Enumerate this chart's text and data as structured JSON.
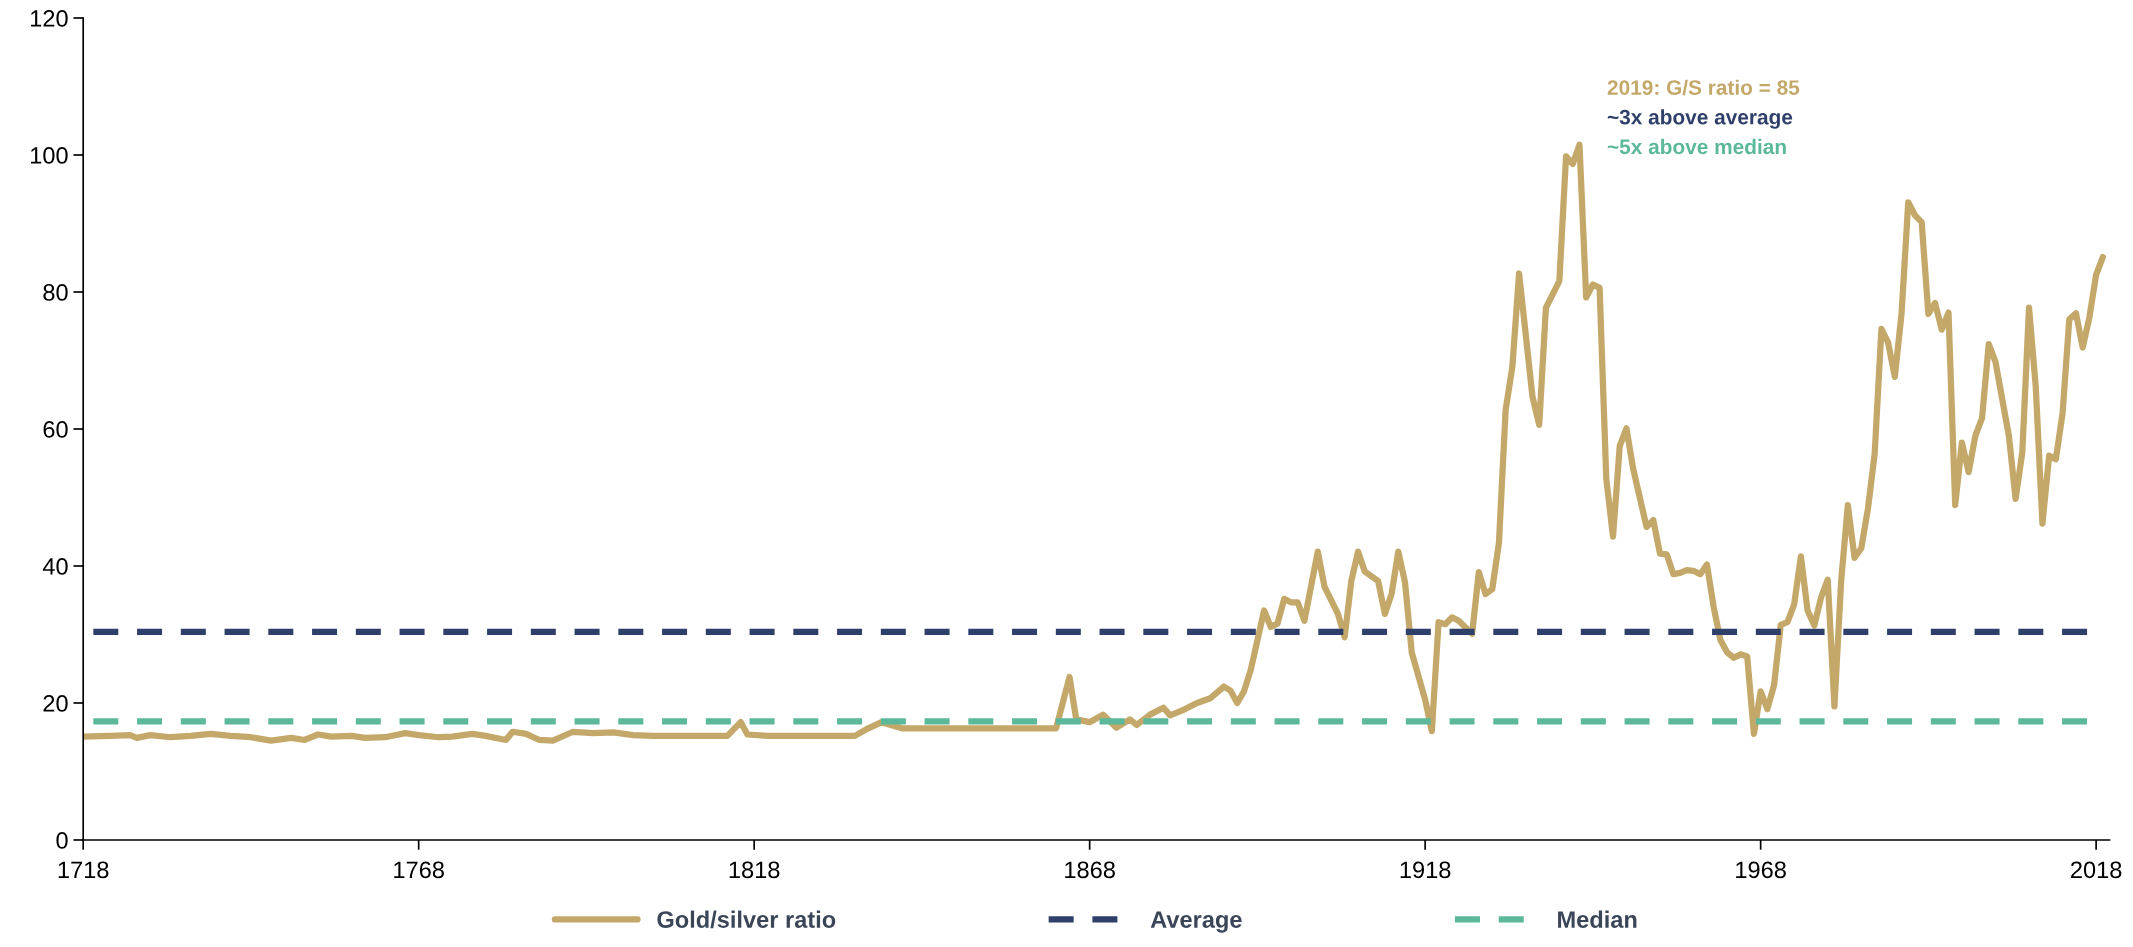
{
  "chart_data": {
    "type": "line",
    "x": [
      1718,
      1722,
      1725,
      1726,
      1728,
      1731,
      1734,
      1737,
      1740,
      1743,
      1746,
      1749,
      1751,
      1753,
      1755,
      1758,
      1760,
      1763,
      1766,
      1768,
      1771,
      1773,
      1776,
      1778,
      1781,
      1782,
      1784,
      1786,
      1788,
      1791,
      1794,
      1797,
      1800,
      1803,
      1814,
      1816,
      1817,
      1820,
      1833,
      1835,
      1837,
      1840,
      1863,
      1865,
      1866,
      1868,
      1870,
      1872,
      1874,
      1875,
      1877,
      1879,
      1880,
      1881,
      1882,
      1884,
      1886,
      1888,
      1889,
      1890,
      1891,
      1892,
      1894,
      1895,
      1896,
      1897,
      1898,
      1899,
      1900,
      1902,
      1903,
      1905,
      1906,
      1907,
      1908,
      1909,
      1911,
      1912,
      1913,
      1914,
      1915,
      1916,
      1918,
      1919,
      1920,
      1921,
      1922,
      1923,
      1925,
      1926,
      1927,
      1928,
      1929,
      1930,
      1931,
      1932,
      1934,
      1935,
      1936,
      1938,
      1939,
      1940,
      1941,
      1942,
      1943,
      1944,
      1945,
      1946,
      1947,
      1948,
      1949,
      1951,
      1952,
      1953,
      1954,
      1955,
      1956,
      1957,
      1958,
      1959,
      1960,
      1961,
      1962,
      1963,
      1964,
      1965,
      1966,
      1967,
      1968,
      1969,
      1970,
      1971,
      1972,
      1973,
      1974,
      1975,
      1976,
      1977,
      1978,
      1979,
      1980,
      1981,
      1982,
      1983,
      1984,
      1985,
      1986,
      1987,
      1988,
      1989,
      1990,
      1991,
      1992,
      1993,
      1994,
      1995,
      1996,
      1997,
      1998,
      1999,
      2000,
      2001,
      2002,
      2003,
      2005,
      2006,
      2007,
      2008,
      2009,
      2010,
      2011,
      2012,
      2013,
      2014,
      2015,
      2016,
      2017,
      2018,
      2019
    ],
    "series": [
      {
        "name": "Gold/silver ratio",
        "color": "#c4a86a",
        "values": [
          15.1,
          15.2,
          15.3,
          14.9,
          15.3,
          15.0,
          15.2,
          15.5,
          15.2,
          15.0,
          14.5,
          14.9,
          14.6,
          15.4,
          15.1,
          15.2,
          14.9,
          15.0,
          15.6,
          15.3,
          15.0,
          15.1,
          15.5,
          15.2,
          14.6,
          15.8,
          15.5,
          14.6,
          14.5,
          15.8,
          15.6,
          15.7,
          15.3,
          15.2,
          15.2,
          17.2,
          15.4,
          15.2,
          15.2,
          16.3,
          17.2,
          16.3,
          16.3,
          23.8,
          17.6,
          17.2,
          18.3,
          16.4,
          17.6,
          16.8,
          18.3,
          19.3,
          18.2,
          18.6,
          19.0,
          20.0,
          20.7,
          22.4,
          21.8,
          20.0,
          21.7,
          24.8,
          33.5,
          31.1,
          31.6,
          35.2,
          34.7,
          34.7,
          32.0,
          42.1,
          37.0,
          33.0,
          29.6,
          37.8,
          42.1,
          39.2,
          37.8,
          33.0,
          35.9,
          42.1,
          37.6,
          27.4,
          20.5,
          15.9,
          31.8,
          31.5,
          32.5,
          32.0,
          30.1,
          39.1,
          35.9,
          36.6,
          43.4,
          62.8,
          69.1,
          82.7,
          64.7,
          60.6,
          77.7,
          81.6,
          99.8,
          98.7,
          101.5,
          79.2,
          81.1,
          80.6,
          52.7,
          44.3,
          57.5,
          60.1,
          54.2,
          45.7,
          46.7,
          41.8,
          41.7,
          38.8,
          39.0,
          39.4,
          39.3,
          38.8,
          40.2,
          34.0,
          29.2,
          27.4,
          26.6,
          27.1,
          26.8,
          15.5,
          21.7,
          19.1,
          22.6,
          31.4,
          31.8,
          34.4,
          41.4,
          33.5,
          31.3,
          35.4,
          38.0,
          19.5,
          37.8,
          48.9,
          41.2,
          42.6,
          48.4,
          56.4,
          74.6,
          72.6,
          67.6,
          76.8,
          93.1,
          91.2,
          90.2,
          76.8,
          78.4,
          74.5,
          77.0,
          48.9,
          58.0,
          53.7,
          59.0,
          61.6,
          72.4,
          69.8,
          59.0,
          49.8,
          56.6,
          77.7,
          66.2,
          46.2,
          56.1,
          55.6,
          62.3,
          76.0,
          76.9,
          71.9,
          76.3,
          82.5,
          85.1
        ]
      }
    ],
    "ref_lines": [
      {
        "axis": "y",
        "value": 30.4,
        "label": "Average",
        "color": "#2e3f6a",
        "line_style": "dashed"
      },
      {
        "axis": "y",
        "value": 17.3,
        "label": "Median",
        "color": "#5bb89a",
        "line_style": "dashed"
      }
    ],
    "annotations": [
      "2019: G/S ratio = 85",
      "~3x above average",
      "~5x above median"
    ],
    "xlim": [
      1718,
      2020
    ],
    "xticks": [
      1718,
      1768,
      1818,
      1868,
      1918,
      1968,
      2018
    ],
    "ylim": [
      0,
      120
    ],
    "yticks": [
      0,
      20,
      40,
      60,
      80,
      100,
      120
    ],
    "grid": false,
    "legend": "bottom",
    "marker": "none",
    "line_style": "solid"
  }
}
